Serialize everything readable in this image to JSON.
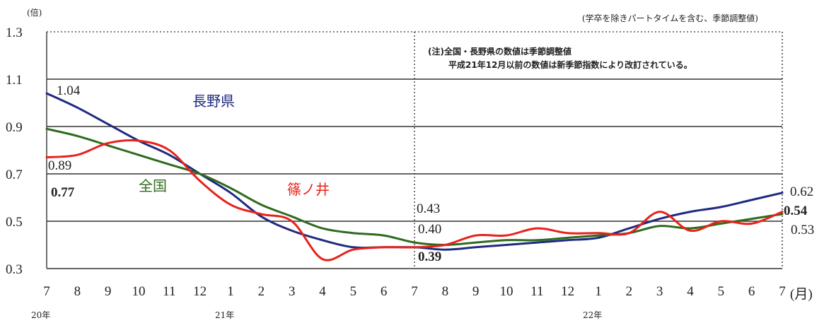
{
  "chart_data": {
    "type": "line",
    "ylabel": "(倍)",
    "ylim": [
      0.3,
      1.3
    ],
    "yticks": [
      "1.3",
      "1.1",
      "0.9",
      "0.7",
      "0.5",
      "0.3"
    ],
    "x_month_labels": [
      "7",
      "8",
      "9",
      "10",
      "11",
      "12",
      "1",
      "2",
      "3",
      "4",
      "5",
      "6",
      "7",
      "8",
      "9",
      "10",
      "11",
      "12",
      "1",
      "2",
      "3",
      "4",
      "5",
      "6",
      "7"
    ],
    "x_unit": "(月)",
    "year_labels": [
      {
        "text": "20年",
        "at_index": 0
      },
      {
        "text": "21年",
        "at_index": 6
      },
      {
        "text": "22年",
        "at_index": 18
      }
    ],
    "subtitle": "(学卒を除きパートタイムを含む、季節調整値)",
    "note_lines": [
      "(注)全国・長野県の数値は季節調整値",
      "平成21年12月以前の数値は新季節指数により改訂されている。"
    ],
    "series": [
      {
        "name": "長野県",
        "color": "#1f2a80",
        "values": [
          1.04,
          0.98,
          0.91,
          0.84,
          0.78,
          0.7,
          0.62,
          0.52,
          0.46,
          0.42,
          0.39,
          0.39,
          0.39,
          0.38,
          0.39,
          0.4,
          0.41,
          0.42,
          0.43,
          0.47,
          0.51,
          0.54,
          0.56,
          0.59,
          0.62
        ]
      },
      {
        "name": "全国",
        "color": "#2e6b1e",
        "values": [
          0.89,
          0.86,
          0.82,
          0.78,
          0.74,
          0.7,
          0.64,
          0.57,
          0.52,
          0.47,
          0.45,
          0.44,
          0.41,
          0.4,
          0.41,
          0.42,
          0.42,
          0.43,
          0.44,
          0.45,
          0.48,
          0.47,
          0.49,
          0.51,
          0.53
        ]
      },
      {
        "name": "篠ノ井",
        "color": "#e8221b",
        "values": [
          0.77,
          0.78,
          0.83,
          0.84,
          0.8,
          0.67,
          0.57,
          0.53,
          0.5,
          0.34,
          0.38,
          0.39,
          0.39,
          0.4,
          0.44,
          0.44,
          0.47,
          0.45,
          0.45,
          0.45,
          0.54,
          0.46,
          0.5,
          0.49,
          0.54
        ]
      }
    ],
    "annotations": {
      "start": [
        {
          "text": "1.04",
          "style": "normal"
        },
        {
          "text": "0.89",
          "style": "normal"
        },
        {
          "text": "0.77",
          "style": "bold"
        }
      ],
      "mid": [
        {
          "text": "0.43",
          "style": "normal"
        },
        {
          "text": "0.40",
          "style": "normal"
        },
        {
          "text": "0.39",
          "style": "bold"
        }
      ],
      "end": [
        {
          "text": "0.62",
          "style": "normal"
        },
        {
          "text": "0.54",
          "style": "bold"
        },
        {
          "text": "0.53",
          "style": "normal"
        }
      ]
    }
  }
}
